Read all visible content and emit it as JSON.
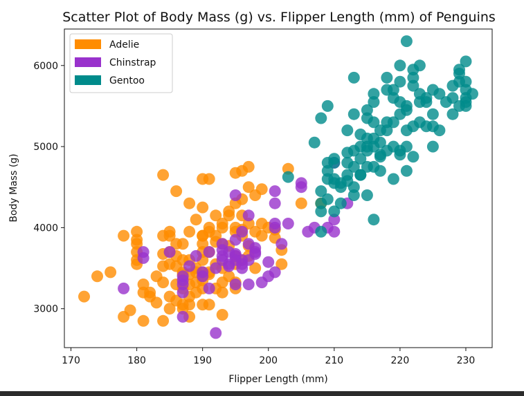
{
  "chart_data": {
    "type": "scatter",
    "title": "Scatter Plot of Body Mass (g) vs. Flipper Length (mm) of Penguins",
    "xlabel": "Flipper Length (mm)",
    "ylabel": "Body Mass (g)",
    "xlim": [
      169,
      234
    ],
    "ylim": [
      2520,
      6450
    ],
    "xticks": [
      170,
      180,
      190,
      200,
      210,
      220,
      230
    ],
    "yticks": [
      3000,
      4000,
      5000,
      6000
    ],
    "grid": false,
    "legend_position": "top-left",
    "series": [
      {
        "name": "Adelie",
        "color": "#ff8c00",
        "points": [
          [
            172,
            3150
          ],
          [
            174,
            3400
          ],
          [
            176,
            3450
          ],
          [
            178,
            3900
          ],
          [
            178,
            2900
          ],
          [
            179,
            2980
          ],
          [
            180,
            3950
          ],
          [
            180,
            3800
          ],
          [
            180,
            3700
          ],
          [
            180,
            3600
          ],
          [
            180,
            3550
          ],
          [
            181,
            2850
          ],
          [
            181,
            3300
          ],
          [
            181,
            3200
          ],
          [
            182,
            3150
          ],
          [
            182,
            3200
          ],
          [
            183,
            3400
          ],
          [
            183,
            3075
          ],
          [
            184,
            3525
          ],
          [
            184,
            4650
          ],
          [
            184,
            3900
          ],
          [
            184,
            3325
          ],
          [
            184,
            2850
          ],
          [
            185,
            3550
          ],
          [
            185,
            3900
          ],
          [
            185,
            3950
          ],
          [
            185,
            3150
          ],
          [
            185,
            3000
          ],
          [
            186,
            3525
          ],
          [
            186,
            4450
          ],
          [
            186,
            3650
          ],
          [
            186,
            3100
          ],
          [
            186,
            3800
          ],
          [
            187,
            3000
          ],
          [
            187,
            3050
          ],
          [
            187,
            3800
          ],
          [
            187,
            3600
          ],
          [
            187,
            3450
          ],
          [
            187,
            3250
          ],
          [
            188,
            2900
          ],
          [
            188,
            3600
          ],
          [
            188,
            4300
          ],
          [
            188,
            3950
          ],
          [
            188,
            3300
          ],
          [
            188,
            3150
          ],
          [
            188,
            3050
          ],
          [
            189,
            4100
          ],
          [
            189,
            3500
          ],
          [
            189,
            3325
          ],
          [
            189,
            3450
          ],
          [
            190,
            3900
          ],
          [
            190,
            3800
          ],
          [
            190,
            3600
          ],
          [
            190,
            3450
          ],
          [
            190,
            3400
          ],
          [
            190,
            3350
          ],
          [
            190,
            4250
          ],
          [
            190,
            4600
          ],
          [
            190,
            3700
          ],
          [
            190,
            3050
          ],
          [
            191,
            4000
          ],
          [
            191,
            3700
          ],
          [
            191,
            3950
          ],
          [
            191,
            3450
          ],
          [
            191,
            4600
          ],
          [
            191,
            3425
          ],
          [
            191,
            3050
          ],
          [
            192,
            4150
          ],
          [
            192,
            3900
          ],
          [
            192,
            3825
          ],
          [
            192,
            3550
          ],
          [
            192,
            3250
          ],
          [
            193,
            4000
          ],
          [
            193,
            3325
          ],
          [
            193,
            3800
          ],
          [
            193,
            3200
          ],
          [
            193,
            4050
          ],
          [
            193,
            2925
          ],
          [
            194,
            4200
          ],
          [
            194,
            3775
          ],
          [
            194,
            3400
          ],
          [
            194,
            4150
          ],
          [
            195,
            3650
          ],
          [
            195,
            3250
          ],
          [
            195,
            4000
          ],
          [
            195,
            4675
          ],
          [
            195,
            3950
          ],
          [
            195,
            4300
          ],
          [
            195,
            3325
          ],
          [
            196,
            3900
          ],
          [
            196,
            4700
          ],
          [
            196,
            4350
          ],
          [
            196,
            4150
          ],
          [
            197,
            4500
          ],
          [
            197,
            4750
          ],
          [
            197,
            3775
          ],
          [
            197,
            3650
          ],
          [
            198,
            4400
          ],
          [
            198,
            3500
          ],
          [
            199,
            4050
          ],
          [
            199,
            4475
          ],
          [
            200,
            4000
          ],
          [
            201,
            3975
          ],
          [
            202,
            3725
          ],
          [
            203,
            4725
          ],
          [
            205,
            4300
          ],
          [
            208,
            4300
          ],
          [
            184,
            3675
          ],
          [
            186,
            3300
          ],
          [
            188,
            3425
          ],
          [
            189,
            3200
          ],
          [
            190,
            3900
          ],
          [
            193,
            3500
          ],
          [
            195,
            3550
          ],
          [
            196,
            3600
          ],
          [
            196,
            3975
          ],
          [
            197,
            4050
          ],
          [
            198,
            3950
          ],
          [
            199,
            3900
          ],
          [
            201,
            3875
          ],
          [
            202,
            3550
          ],
          [
            185,
            3700
          ],
          [
            190,
            3250
          ],
          [
            187,
            3425
          ],
          [
            180,
            3850
          ]
        ]
      },
      {
        "name": "Chinstrap",
        "color": "#9932cc",
        "points": [
          [
            178,
            3250
          ],
          [
            181,
            3700
          ],
          [
            181,
            3625
          ],
          [
            185,
            3700
          ],
          [
            187,
            3350
          ],
          [
            187,
            3400
          ],
          [
            187,
            3300
          ],
          [
            187,
            3200
          ],
          [
            187,
            2900
          ],
          [
            188,
            3525
          ],
          [
            189,
            3650
          ],
          [
            190,
            3400
          ],
          [
            190,
            3450
          ],
          [
            191,
            3700
          ],
          [
            191,
            3250
          ],
          [
            192,
            2700
          ],
          [
            192,
            3500
          ],
          [
            193,
            3725
          ],
          [
            193,
            3800
          ],
          [
            193,
            3650
          ],
          [
            193,
            3600
          ],
          [
            194,
            3550
          ],
          [
            194,
            3525
          ],
          [
            195,
            3675
          ],
          [
            195,
            4400
          ],
          [
            195,
            3300
          ],
          [
            195,
            3600
          ],
          [
            195,
            3650
          ],
          [
            195,
            3850
          ],
          [
            196,
            3950
          ],
          [
            196,
            3500
          ],
          [
            196,
            3600
          ],
          [
            196,
            3550
          ],
          [
            197,
            3300
          ],
          [
            197,
            3600
          ],
          [
            197,
            4150
          ],
          [
            197,
            3800
          ],
          [
            198,
            3750
          ],
          [
            198,
            3675
          ],
          [
            198,
            3700
          ],
          [
            199,
            3325
          ],
          [
            200,
            3400
          ],
          [
            200,
            3575
          ],
          [
            201,
            4300
          ],
          [
            201,
            4450
          ],
          [
            201,
            4000
          ],
          [
            201,
            4050
          ],
          [
            202,
            3800
          ],
          [
            203,
            4050
          ],
          [
            205,
            4550
          ],
          [
            205,
            4500
          ],
          [
            206,
            3950
          ],
          [
            207,
            4000
          ],
          [
            209,
            4000
          ],
          [
            210,
            3950
          ],
          [
            210,
            4100
          ],
          [
            210,
            4800
          ],
          [
            212,
            4300
          ],
          [
            201,
            3450
          ],
          [
            194,
            3700
          ]
        ]
      },
      {
        "name": "Gentoo",
        "color": "#008b8b",
        "points": [
          [
            203,
            4625
          ],
          [
            207,
            5050
          ],
          [
            208,
            5350
          ],
          [
            208,
            3950
          ],
          [
            208,
            4450
          ],
          [
            208,
            4200
          ],
          [
            208,
            4300
          ],
          [
            209,
            4800
          ],
          [
            209,
            5500
          ],
          [
            209,
            4350
          ],
          [
            209,
            4700
          ],
          [
            210,
            4200
          ],
          [
            210,
            4600
          ],
          [
            210,
            4800
          ],
          [
            210,
            4850
          ],
          [
            210,
            4550
          ],
          [
            211,
            4550
          ],
          [
            211,
            4500
          ],
          [
            212,
            4800
          ],
          [
            212,
            4575
          ],
          [
            212,
            4925
          ],
          [
            212,
            5200
          ],
          [
            213,
            5850
          ],
          [
            213,
            4950
          ],
          [
            213,
            4400
          ],
          [
            213,
            4750
          ],
          [
            213,
            5400
          ],
          [
            214,
            5000
          ],
          [
            214,
            4850
          ],
          [
            214,
            4650
          ],
          [
            215,
            4750
          ],
          [
            215,
            5100
          ],
          [
            215,
            4950
          ],
          [
            215,
            5450
          ],
          [
            215,
            5350
          ],
          [
            215,
            4400
          ],
          [
            215,
            5000
          ],
          [
            216,
            5650
          ],
          [
            216,
            5100
          ],
          [
            216,
            4750
          ],
          [
            216,
            5550
          ],
          [
            216,
            4100
          ],
          [
            216,
            5000
          ],
          [
            217,
            4900
          ],
          [
            217,
            4875
          ],
          [
            217,
            5050
          ],
          [
            217,
            4700
          ],
          [
            218,
            5200
          ],
          [
            218,
            5850
          ],
          [
            218,
            4950
          ],
          [
            218,
            5300
          ],
          [
            219,
            5700
          ],
          [
            219,
            5600
          ],
          [
            219,
            4600
          ],
          [
            219,
            5000
          ],
          [
            220,
            5800
          ],
          [
            220,
            5550
          ],
          [
            220,
            4900
          ],
          [
            220,
            5400
          ],
          [
            220,
            4950
          ],
          [
            221,
            5500
          ],
          [
            221,
            6300
          ],
          [
            221,
            5200
          ],
          [
            221,
            5000
          ],
          [
            221,
            4700
          ],
          [
            222,
            5250
          ],
          [
            222,
            5850
          ],
          [
            222,
            5950
          ],
          [
            222,
            5750
          ],
          [
            222,
            4875
          ],
          [
            223,
            5550
          ],
          [
            223,
            5650
          ],
          [
            223,
            6000
          ],
          [
            224,
            5550
          ],
          [
            224,
            5250
          ],
          [
            225,
            5700
          ],
          [
            225,
            5000
          ],
          [
            225,
            5400
          ],
          [
            226,
            5200
          ],
          [
            228,
            5600
          ],
          [
            228,
            5400
          ],
          [
            228,
            5750
          ],
          [
            229,
            5500
          ],
          [
            229,
            5800
          ],
          [
            229,
            5900
          ],
          [
            230,
            5700
          ],
          [
            230,
            6050
          ],
          [
            230,
            5550
          ],
          [
            230,
            5600
          ],
          [
            230,
            5500
          ],
          [
            231,
            5650
          ],
          [
            220,
            6000
          ],
          [
            224,
            5600
          ],
          [
            225,
            5250
          ],
          [
            219,
            5300
          ],
          [
            217,
            5200
          ],
          [
            216,
            5300
          ],
          [
            214,
            5150
          ],
          [
            218,
            5700
          ],
          [
            221,
            5450
          ],
          [
            223,
            5300
          ],
          [
            211,
            4300
          ],
          [
            212,
            4650
          ],
          [
            209,
            4600
          ],
          [
            226,
            5650
          ],
          [
            227,
            5550
          ],
          [
            229,
            5950
          ],
          [
            230,
            5800
          ],
          [
            214,
            4650
          ],
          [
            213,
            4500
          ]
        ]
      }
    ]
  }
}
